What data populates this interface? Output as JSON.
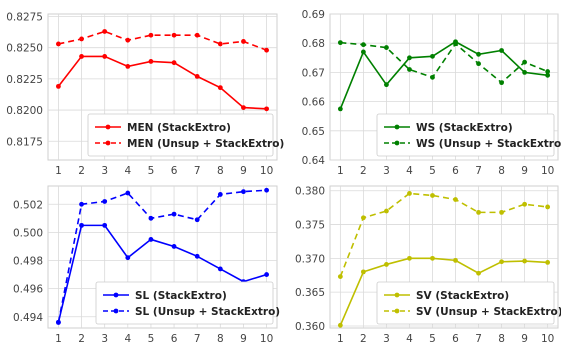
{
  "chart_data": [
    {
      "type": "line",
      "x": [
        1,
        2,
        3,
        4,
        5,
        6,
        7,
        8,
        9,
        10
      ],
      "ylim": [
        0.816,
        0.8277
      ],
      "yticks": [
        "0.8175",
        "0.8200",
        "0.8225",
        "0.8250",
        "0.8275"
      ],
      "ytick_values": [
        0.8175,
        0.82,
        0.8225,
        0.825,
        0.8275
      ],
      "grid": true,
      "legend_position": "lower-right",
      "series": [
        {
          "name": "MEN (StackExtro)",
          "color": "#ff0000",
          "linestyle": "solid",
          "values": [
            0.8219,
            0.8243,
            0.8243,
            0.8235,
            0.8239,
            0.8238,
            0.8227,
            0.8218,
            0.8202,
            0.8201
          ]
        },
        {
          "name": "MEN (Unsup + StackExtro)",
          "color": "#ff0000",
          "linestyle": "dashed",
          "values": [
            0.8253,
            0.8257,
            0.8263,
            0.8256,
            0.826,
            0.826,
            0.826,
            0.8253,
            0.8255,
            0.8248
          ]
        }
      ]
    },
    {
      "type": "line",
      "x": [
        1,
        2,
        3,
        4,
        5,
        6,
        7,
        8,
        9,
        10
      ],
      "ylim": [
        0.64,
        0.69
      ],
      "yticks": [
        "0.64",
        "0.65",
        "0.66",
        "0.67",
        "0.68",
        "0.69"
      ],
      "ytick_values": [
        0.64,
        0.65,
        0.66,
        0.67,
        0.68,
        0.69
      ],
      "grid": true,
      "legend_position": "lower-right",
      "series": [
        {
          "name": "WS (StackExtro)",
          "color": "#008000",
          "linestyle": "solid",
          "values": [
            0.6575,
            0.677,
            0.6658,
            0.675,
            0.6755,
            0.6805,
            0.6762,
            0.6775,
            0.67,
            0.669
          ]
        },
        {
          "name": "WS (Unsup + StackExtro)",
          "color": "#008000",
          "linestyle": "dashed",
          "values": [
            0.6802,
            0.6795,
            0.6785,
            0.671,
            0.6683,
            0.6798,
            0.673,
            0.6665,
            0.6735,
            0.6703
          ]
        }
      ]
    },
    {
      "type": "line",
      "x": [
        1,
        2,
        3,
        4,
        5,
        6,
        7,
        8,
        9,
        10
      ],
      "ylim": [
        0.4932,
        0.5033
      ],
      "yticks": [
        "0.494",
        "0.496",
        "0.498",
        "0.500",
        "0.502"
      ],
      "ytick_values": [
        0.494,
        0.496,
        0.498,
        0.5,
        0.502
      ],
      "grid": true,
      "legend_position": "lower-right",
      "series": [
        {
          "name": "SL (StackExtro)",
          "color": "#0000ff",
          "linestyle": "solid",
          "values": [
            0.4936,
            0.5005,
            0.5005,
            0.4982,
            0.4995,
            0.499,
            0.4983,
            0.4974,
            0.4965,
            0.497
          ]
        },
        {
          "name": "SL (Unsup + StackExtro)",
          "color": "#0000ff",
          "linestyle": "dashed",
          "values": [
            0.4936,
            0.502,
            0.5022,
            0.5028,
            0.501,
            0.5013,
            0.5009,
            0.5027,
            0.5029,
            0.503
          ]
        }
      ]
    },
    {
      "type": "line",
      "x": [
        1,
        2,
        3,
        4,
        5,
        6,
        7,
        8,
        9,
        10
      ],
      "ylim": [
        0.3597,
        0.3807
      ],
      "yticks": [
        "0.360",
        "0.365",
        "0.370",
        "0.375",
        "0.380"
      ],
      "ytick_values": [
        0.36,
        0.365,
        0.37,
        0.375,
        0.38
      ],
      "grid": true,
      "legend_position": "lower-right",
      "series": [
        {
          "name": "SV (StackExtro)",
          "color": "#bfbf00",
          "linestyle": "solid",
          "values": [
            0.3601,
            0.368,
            0.3691,
            0.37,
            0.37,
            0.3697,
            0.3678,
            0.3695,
            0.3696,
            0.3694
          ]
        },
        {
          "name": "SV (Unsup + StackExtro)",
          "color": "#bfbf00",
          "linestyle": "dashed",
          "values": [
            0.3673,
            0.376,
            0.377,
            0.3796,
            0.3793,
            0.3787,
            0.3768,
            0.3768,
            0.378,
            0.3776
          ]
        }
      ]
    }
  ]
}
